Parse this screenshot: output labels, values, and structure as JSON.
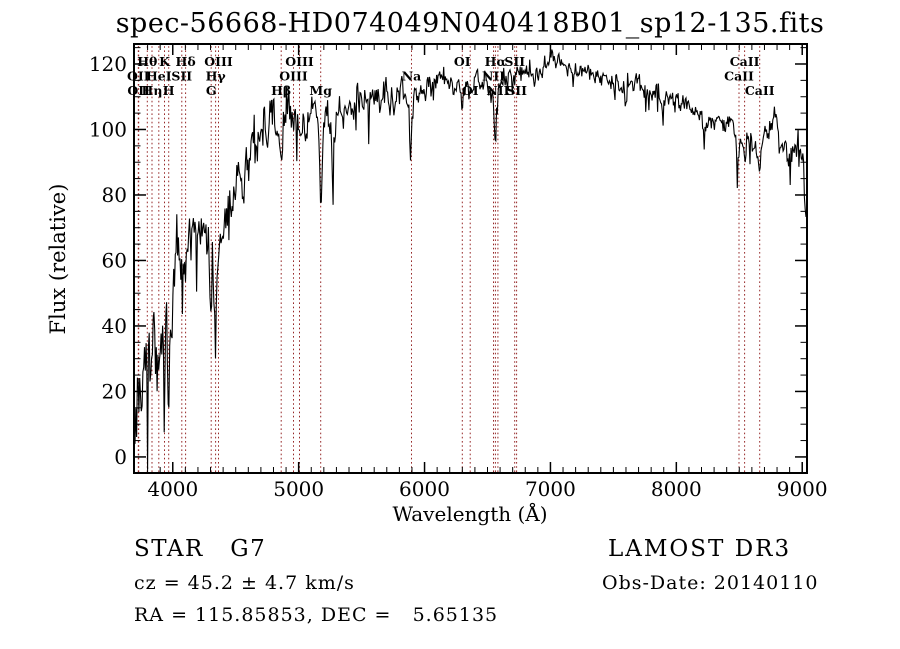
{
  "footer": {
    "class_label": "STAR   G7",
    "survey": "LAMOST DR3",
    "cz": "cz = 45.2 ± 4.7 km/s",
    "obs_date": "Obs-Date: 20140110",
    "ra_dec": "RA = 115.85853, DEC =   5.65135"
  },
  "chart_data": {
    "type": "line",
    "title": "spec-56668-HD074049N040418B01_sp12-135.fits",
    "xlabel": "Wavelength (Å)",
    "ylabel": "Flux (relative)",
    "xlim": [
      3700,
      9030
    ],
    "ylim": [
      -4.6,
      125.8
    ],
    "x_major_ticks": [
      4000,
      5000,
      6000,
      7000,
      8000,
      9000
    ],
    "x_minor_step": 100,
    "y_major_ticks": [
      0,
      20,
      40,
      60,
      80,
      100,
      120
    ],
    "y_minor_step": 5,
    "grid": false,
    "legend": "none",
    "series_color": "#000000",
    "line_marker_color": "#962828",
    "spectral_lines": [
      {
        "label": "OII",
        "wl": 3726,
        "row": 2
      },
      {
        "label": "OII",
        "wl": 3729,
        "row": 3
      },
      {
        "label": "Hθ",
        "wl": 3798,
        "row": 1
      },
      {
        "label": "Hη",
        "wl": 3835,
        "row": 3
      },
      {
        "label": "HeI",
        "wl": 3889,
        "row": 2
      },
      {
        "label": "K",
        "wl": 3934,
        "row": 1
      },
      {
        "label": "H",
        "wl": 3968,
        "row": 3
      },
      {
        "label": "SII",
        "wl": 4072,
        "row": 2
      },
      {
        "label": "Hδ",
        "wl": 4102,
        "row": 1
      },
      {
        "label": "G",
        "wl": 4305,
        "row": 3
      },
      {
        "label": "Hγ",
        "wl": 4340,
        "row": 2
      },
      {
        "label": "OIII",
        "wl": 4363,
        "row": 1
      },
      {
        "label": "Hβ",
        "wl": 4861,
        "row": 3
      },
      {
        "label": "OIII",
        "wl": 4959,
        "row": 2
      },
      {
        "label": "OIII",
        "wl": 5007,
        "row": 1
      },
      {
        "label": "Mg",
        "wl": 5175,
        "row": 3
      },
      {
        "label": "Na",
        "wl": 5896,
        "row": 2
      },
      {
        "label": "OI",
        "wl": 6300,
        "row": 1
      },
      {
        "label": "OI",
        "wl": 6363,
        "row": 3
      },
      {
        "label": "NII",
        "wl": 6548,
        "row": 2
      },
      {
        "label": "Hα",
        "wl": 6563,
        "row": 1
      },
      {
        "label": "NII",
        "wl": 6583,
        "row": 3
      },
      {
        "label": "SII",
        "wl": 6716,
        "row": 1
      },
      {
        "label": "SII",
        "wl": 6731,
        "row": 3
      },
      {
        "label": "CaII",
        "wl": 8542,
        "row": 1
      },
      {
        "label": "CaII",
        "wl": 8498,
        "row": 2
      },
      {
        "label": "CaII",
        "wl": 8662,
        "row": 3
      }
    ],
    "continuum_points": [
      [
        3700,
        -3
      ],
      [
        3706,
        22
      ],
      [
        3712,
        8
      ],
      [
        3720,
        30
      ],
      [
        3728,
        20
      ],
      [
        3736,
        26
      ],
      [
        3745,
        32
      ],
      [
        3755,
        26
      ],
      [
        3765,
        31
      ],
      [
        3775,
        34
      ],
      [
        3785,
        28
      ],
      [
        3798,
        22
      ],
      [
        3808,
        32
      ],
      [
        3818,
        34
      ],
      [
        3828,
        26
      ],
      [
        3835,
        21
      ],
      [
        3845,
        34
      ],
      [
        3855,
        38
      ],
      [
        3866,
        41
      ],
      [
        3875,
        30
      ],
      [
        3889,
        23
      ],
      [
        3898,
        38
      ],
      [
        3908,
        42
      ],
      [
        3918,
        45
      ],
      [
        3926,
        38
      ],
      [
        3934,
        9
      ],
      [
        3942,
        36
      ],
      [
        3950,
        41
      ],
      [
        3958,
        33
      ],
      [
        3968,
        12
      ],
      [
        3976,
        34
      ],
      [
        3985,
        40
      ],
      [
        3995,
        46
      ],
      [
        4005,
        50
      ],
      [
        4020,
        56
      ],
      [
        4035,
        62
      ],
      [
        4050,
        64
      ],
      [
        4065,
        58
      ],
      [
        4080,
        56
      ],
      [
        4095,
        59
      ],
      [
        4102,
        56
      ],
      [
        4115,
        64
      ],
      [
        4130,
        68
      ],
      [
        4150,
        70
      ],
      [
        4170,
        69
      ],
      [
        4190,
        70
      ],
      [
        4210,
        68
      ],
      [
        4230,
        71
      ],
      [
        4250,
        69
      ],
      [
        4270,
        67
      ],
      [
        4290,
        60
      ],
      [
        4305,
        43
      ],
      [
        4318,
        56
      ],
      [
        4330,
        50
      ],
      [
        4340,
        37
      ],
      [
        4352,
        55
      ],
      [
        4363,
        57
      ],
      [
        4375,
        62
      ],
      [
        4390,
        66
      ],
      [
        4410,
        71
      ],
      [
        4430,
        74
      ],
      [
        4455,
        79
      ],
      [
        4480,
        82
      ],
      [
        4505,
        85
      ],
      [
        4530,
        86
      ],
      [
        4555,
        83
      ],
      [
        4580,
        88
      ],
      [
        4610,
        92
      ],
      [
        4640,
        96
      ],
      [
        4670,
        99
      ],
      [
        4700,
        102
      ],
      [
        4730,
        103
      ],
      [
        4760,
        100
      ],
      [
        4790,
        104
      ],
      [
        4820,
        102
      ],
      [
        4840,
        99
      ],
      [
        4861,
        91
      ],
      [
        4880,
        100
      ],
      [
        4900,
        102
      ],
      [
        4925,
        104
      ],
      [
        4950,
        102
      ],
      [
        4975,
        103
      ],
      [
        5000,
        105
      ],
      [
        5030,
        101
      ],
      [
        5060,
        103
      ],
      [
        5090,
        105
      ],
      [
        5120,
        106
      ],
      [
        5150,
        101
      ],
      [
        5165,
        96
      ],
      [
        5175,
        74
      ],
      [
        5188,
        94
      ],
      [
        5210,
        103
      ],
      [
        5235,
        105
      ],
      [
        5255,
        100
      ],
      [
        5270,
        87
      ],
      [
        5285,
        100
      ],
      [
        5310,
        105
      ],
      [
        5340,
        107
      ],
      [
        5370,
        105
      ],
      [
        5400,
        104
      ],
      [
        5430,
        107
      ],
      [
        5460,
        109
      ],
      [
        5490,
        110
      ],
      [
        5520,
        108
      ],
      [
        5550,
        109
      ],
      [
        5580,
        111
      ],
      [
        5610,
        110
      ],
      [
        5640,
        109
      ],
      [
        5670,
        111
      ],
      [
        5700,
        112
      ],
      [
        5730,
        109
      ],
      [
        5760,
        110
      ],
      [
        5790,
        112
      ],
      [
        5820,
        111
      ],
      [
        5850,
        110
      ],
      [
        5875,
        105
      ],
      [
        5890,
        88
      ],
      [
        5905,
        106
      ],
      [
        5925,
        110
      ],
      [
        5950,
        111
      ],
      [
        5975,
        112
      ],
      [
        6000,
        113
      ],
      [
        6030,
        114
      ],
      [
        6060,
        113
      ],
      [
        6090,
        114
      ],
      [
        6120,
        115
      ],
      [
        6150,
        114
      ],
      [
        6180,
        115
      ],
      [
        6210,
        114
      ],
      [
        6240,
        113
      ],
      [
        6270,
        112
      ],
      [
        6300,
        107
      ],
      [
        6320,
        112
      ],
      [
        6345,
        113
      ],
      [
        6363,
        109
      ],
      [
        6385,
        113
      ],
      [
        6410,
        115
      ],
      [
        6440,
        114
      ],
      [
        6470,
        115
      ],
      [
        6495,
        114
      ],
      [
        6520,
        113
      ],
      [
        6540,
        110
      ],
      [
        6563,
        94
      ],
      [
        6585,
        110
      ],
      [
        6610,
        114
      ],
      [
        6640,
        116
      ],
      [
        6670,
        117
      ],
      [
        6700,
        117
      ],
      [
        6730,
        116
      ],
      [
        6760,
        118
      ],
      [
        6790,
        117
      ],
      [
        6820,
        118
      ],
      [
        6850,
        116
      ],
      [
        6880,
        115
      ],
      [
        6910,
        118
      ],
      [
        6940,
        119
      ],
      [
        6970,
        120
      ],
      [
        7000,
        121
      ],
      [
        7030,
        122
      ],
      [
        7060,
        122
      ],
      [
        7090,
        121
      ],
      [
        7120,
        120
      ],
      [
        7150,
        119
      ],
      [
        7180,
        118
      ],
      [
        7210,
        117
      ],
      [
        7240,
        118
      ],
      [
        7270,
        118
      ],
      [
        7300,
        118
      ],
      [
        7330,
        117
      ],
      [
        7360,
        117
      ],
      [
        7390,
        116
      ],
      [
        7420,
        116
      ],
      [
        7450,
        116
      ],
      [
        7480,
        115
      ],
      [
        7510,
        114
      ],
      [
        7540,
        114
      ],
      [
        7570,
        112
      ],
      [
        7594,
        109
      ],
      [
        7620,
        112
      ],
      [
        7650,
        113
      ],
      [
        7680,
        114
      ],
      [
        7710,
        113
      ],
      [
        7740,
        112
      ],
      [
        7770,
        113
      ],
      [
        7800,
        112
      ],
      [
        7830,
        111
      ],
      [
        7860,
        110
      ],
      [
        7890,
        108
      ],
      [
        7920,
        109
      ],
      [
        7950,
        110
      ],
      [
        7980,
        109
      ],
      [
        8010,
        108
      ],
      [
        8040,
        108
      ],
      [
        8070,
        107
      ],
      [
        8100,
        107
      ],
      [
        8130,
        106
      ],
      [
        8160,
        105
      ],
      [
        8190,
        104
      ],
      [
        8220,
        101
      ],
      [
        8250,
        100
      ],
      [
        8280,
        102
      ],
      [
        8310,
        103
      ],
      [
        8340,
        104
      ],
      [
        8370,
        103
      ],
      [
        8400,
        102
      ],
      [
        8430,
        101
      ],
      [
        8460,
        100
      ],
      [
        8498,
        92
      ],
      [
        8520,
        99
      ],
      [
        8542,
        89
      ],
      [
        8565,
        97
      ],
      [
        8590,
        98
      ],
      [
        8615,
        96
      ],
      [
        8640,
        95
      ],
      [
        8662,
        88
      ],
      [
        8685,
        98
      ],
      [
        8710,
        100
      ],
      [
        8735,
        97
      ],
      [
        8760,
        102
      ],
      [
        8775,
        105
      ],
      [
        8790,
        100
      ],
      [
        8815,
        96
      ],
      [
        8840,
        93
      ],
      [
        8865,
        94
      ],
      [
        8890,
        92
      ],
      [
        8915,
        93
      ],
      [
        8940,
        94
      ],
      [
        8960,
        91
      ],
      [
        8980,
        90
      ],
      [
        8995,
        93
      ],
      [
        9008,
        88
      ],
      [
        9018,
        76
      ],
      [
        9030,
        72
      ]
    ],
    "noise_profile": [
      [
        3700,
        12
      ],
      [
        3920,
        10
      ],
      [
        3990,
        8
      ],
      [
        4050,
        6
      ],
      [
        4300,
        6
      ],
      [
        4450,
        7
      ],
      [
        4700,
        6
      ],
      [
        5000,
        5.5
      ],
      [
        5300,
        5
      ],
      [
        5600,
        4.5
      ],
      [
        5900,
        4
      ],
      [
        6200,
        3.5
      ],
      [
        6500,
        3
      ],
      [
        6800,
        2.8
      ],
      [
        7100,
        2.6
      ],
      [
        7400,
        2.6
      ],
      [
        7700,
        2.8
      ],
      [
        8000,
        3
      ],
      [
        8300,
        3.4
      ],
      [
        8600,
        3.8
      ],
      [
        8800,
        4.2
      ],
      [
        9030,
        4.5
      ]
    ],
    "noise_seed": 20140110
  }
}
